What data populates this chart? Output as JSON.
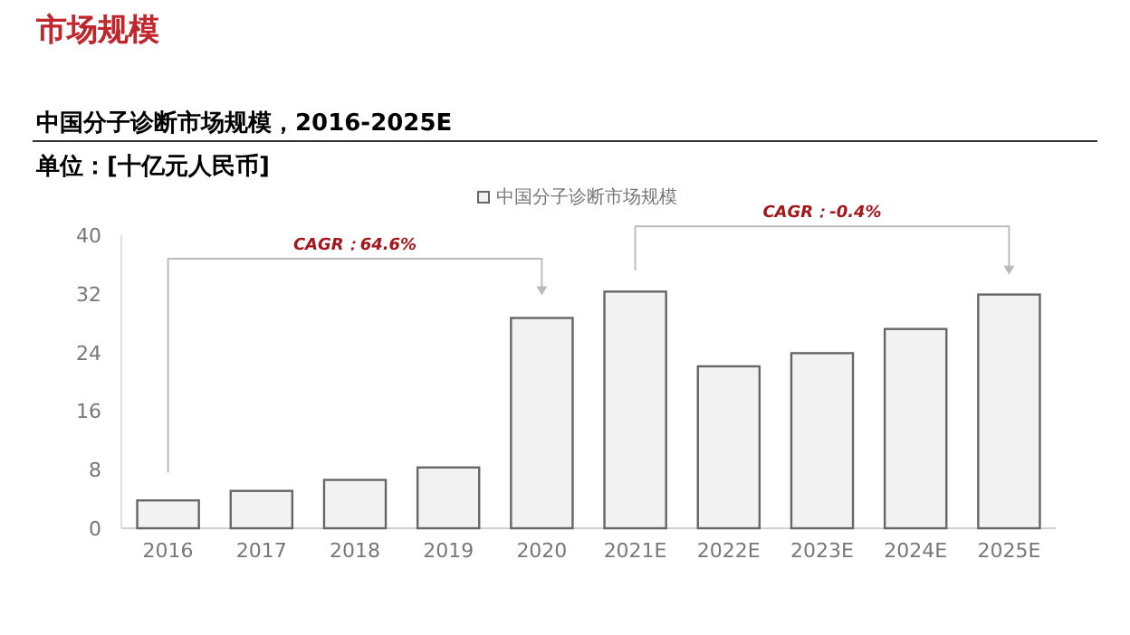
{
  "chart_data": {
    "type": "bar",
    "title": "中国分子诊断市场规模，2016-2025E",
    "subtitle": "单位：[十亿元人民币]",
    "categories": [
      "2016",
      "2017",
      "2018",
      "2019",
      "2020",
      "2021E",
      "2022E",
      "2023E",
      "2024E",
      "2025E"
    ],
    "series": [
      {
        "name": "中国分子诊断市场规模",
        "color": "#f2f2f2",
        "values": [
          3.8,
          5.1,
          6.6,
          8.3,
          28.7,
          32.3,
          22.1,
          23.9,
          27.2,
          31.9
        ]
      }
    ],
    "ylim": [
      0,
      40
    ],
    "yticks": [
      0,
      8,
      16,
      24,
      32,
      40
    ],
    "annotations": [
      "市场规模",
      "CAGR：64.6%",
      "CAGR：-0.4%"
    ],
    "legend": "top",
    "grid": false
  }
}
